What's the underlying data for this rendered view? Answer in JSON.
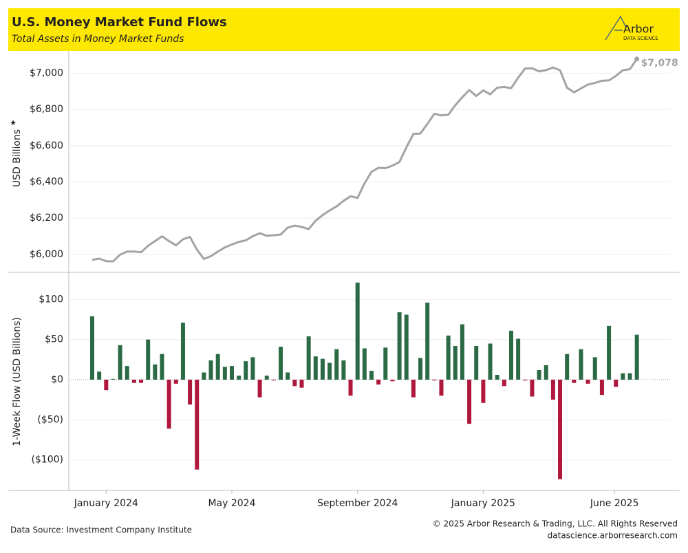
{
  "header": {
    "title": "U.S. Money Market Fund Flows",
    "subtitle": "Total Assets in Money Market Funds"
  },
  "logo": {
    "name": "Arbor",
    "tagline": "DATA SCIENCE"
  },
  "chart_data": [
    {
      "type": "line",
      "y_label": "USD Billions",
      "color": "#a3a3a3",
      "grid": true,
      "ylim": [
        5905,
        7100
      ],
      "yticks": [
        {
          "value": 6000,
          "label": "$6,000"
        },
        {
          "value": 6200,
          "label": "$6,200"
        },
        {
          "value": 6400,
          "label": "$6,400"
        },
        {
          "value": 6600,
          "label": "$6,600"
        },
        {
          "value": 6800,
          "label": "$6,800"
        },
        {
          "value": 7000,
          "label": "$7,000"
        }
      ],
      "values": [
        5970,
        5977,
        5963,
        5962,
        5999,
        6016,
        6016,
        6012,
        6048,
        6074,
        6100,
        6074,
        6050,
        6084,
        6097,
        6027,
        5975,
        5991,
        6016,
        6039,
        6055,
        6069,
        6078,
        6101,
        6117,
        6103,
        6106,
        6110,
        6148,
        6159,
        6152,
        6140,
        6186,
        6217,
        6243,
        6265,
        6296,
        6321,
        6312,
        6392,
        6456,
        6478,
        6476,
        6490,
        6510,
        6591,
        6665,
        6667,
        6720,
        6776,
        6767,
        6771,
        6823,
        6867,
        6907,
        6874,
        6905,
        6883,
        6920,
        6924,
        6917,
        6975,
        7026,
        7027,
        7010,
        7017,
        7031,
        7016,
        6920,
        6894,
        6916,
        6937,
        6946,
        6958,
        6960,
        6985,
        7016,
        7022,
        7078
      ],
      "value_labels": [
        null,
        null,
        null,
        null,
        null,
        null,
        null,
        null,
        null,
        null,
        null,
        null,
        null,
        null,
        null,
        null,
        null,
        null,
        null,
        null,
        null,
        null,
        null,
        null,
        null,
        null,
        null,
        null,
        null,
        null,
        null,
        null,
        null,
        null,
        null,
        null,
        null,
        null,
        null,
        null,
        null,
        null,
        null,
        null,
        null,
        null,
        null,
        null,
        null,
        null,
        null,
        null,
        null,
        null,
        null,
        null,
        null,
        null,
        null,
        null,
        null,
        null,
        null,
        null,
        null,
        null,
        null,
        null,
        null,
        null,
        null,
        null,
        null,
        null,
        null,
        null,
        null,
        null,
        "$7,078"
      ]
    },
    {
      "type": "bar",
      "y_label": "1-Week Flow (USD Billions)",
      "positive_color": "#2b6a45",
      "negative_color": "#b0173c",
      "grid": true,
      "ylim": [
        -138,
        132
      ],
      "yticks": [
        {
          "value": -100,
          "label": "($100)"
        },
        {
          "value": -50,
          "label": "($50)"
        },
        {
          "value": 0,
          "label": "$0"
        },
        {
          "value": 50,
          "label": "$50"
        },
        {
          "value": 100,
          "label": "$100"
        }
      ],
      "xlim": [
        -3.35,
        82.86
      ],
      "xticks": [
        {
          "value": 2,
          "label": "January 2024"
        },
        {
          "value": 20,
          "label": "May 2024"
        },
        {
          "value": 38,
          "label": "September 2024"
        },
        {
          "value": 56,
          "label": "January 2025"
        },
        {
          "value": 74.8,
          "label": "June 2025"
        }
      ],
      "values": [
        79,
        10,
        -13,
        1,
        43,
        17,
        -4,
        -4,
        50,
        19,
        32,
        -61,
        -5,
        71,
        -31,
        -112,
        9,
        24,
        32,
        16,
        17,
        5,
        23,
        28,
        -22,
        5,
        -1,
        41,
        9,
        -8,
        -10,
        54,
        29,
        26,
        21,
        38,
        24,
        -20,
        121,
        39,
        11,
        -6,
        40,
        -2,
        84,
        81,
        -22,
        27,
        96,
        -1,
        -20,
        55,
        42,
        69,
        -55,
        42,
        -29,
        45,
        6,
        -8,
        61,
        51,
        -1,
        -21,
        12,
        18,
        -25,
        -124,
        32,
        -4,
        38,
        -5,
        28,
        -19,
        67,
        -9,
        8,
        8,
        56
      ]
    }
  ],
  "footer": {
    "source": "Data Source: Investment Company Institute",
    "copyright": "© 2025 Arbor Research & Trading, LLC. All Rights Reserved",
    "website": "datascience.arborresearch.com"
  }
}
